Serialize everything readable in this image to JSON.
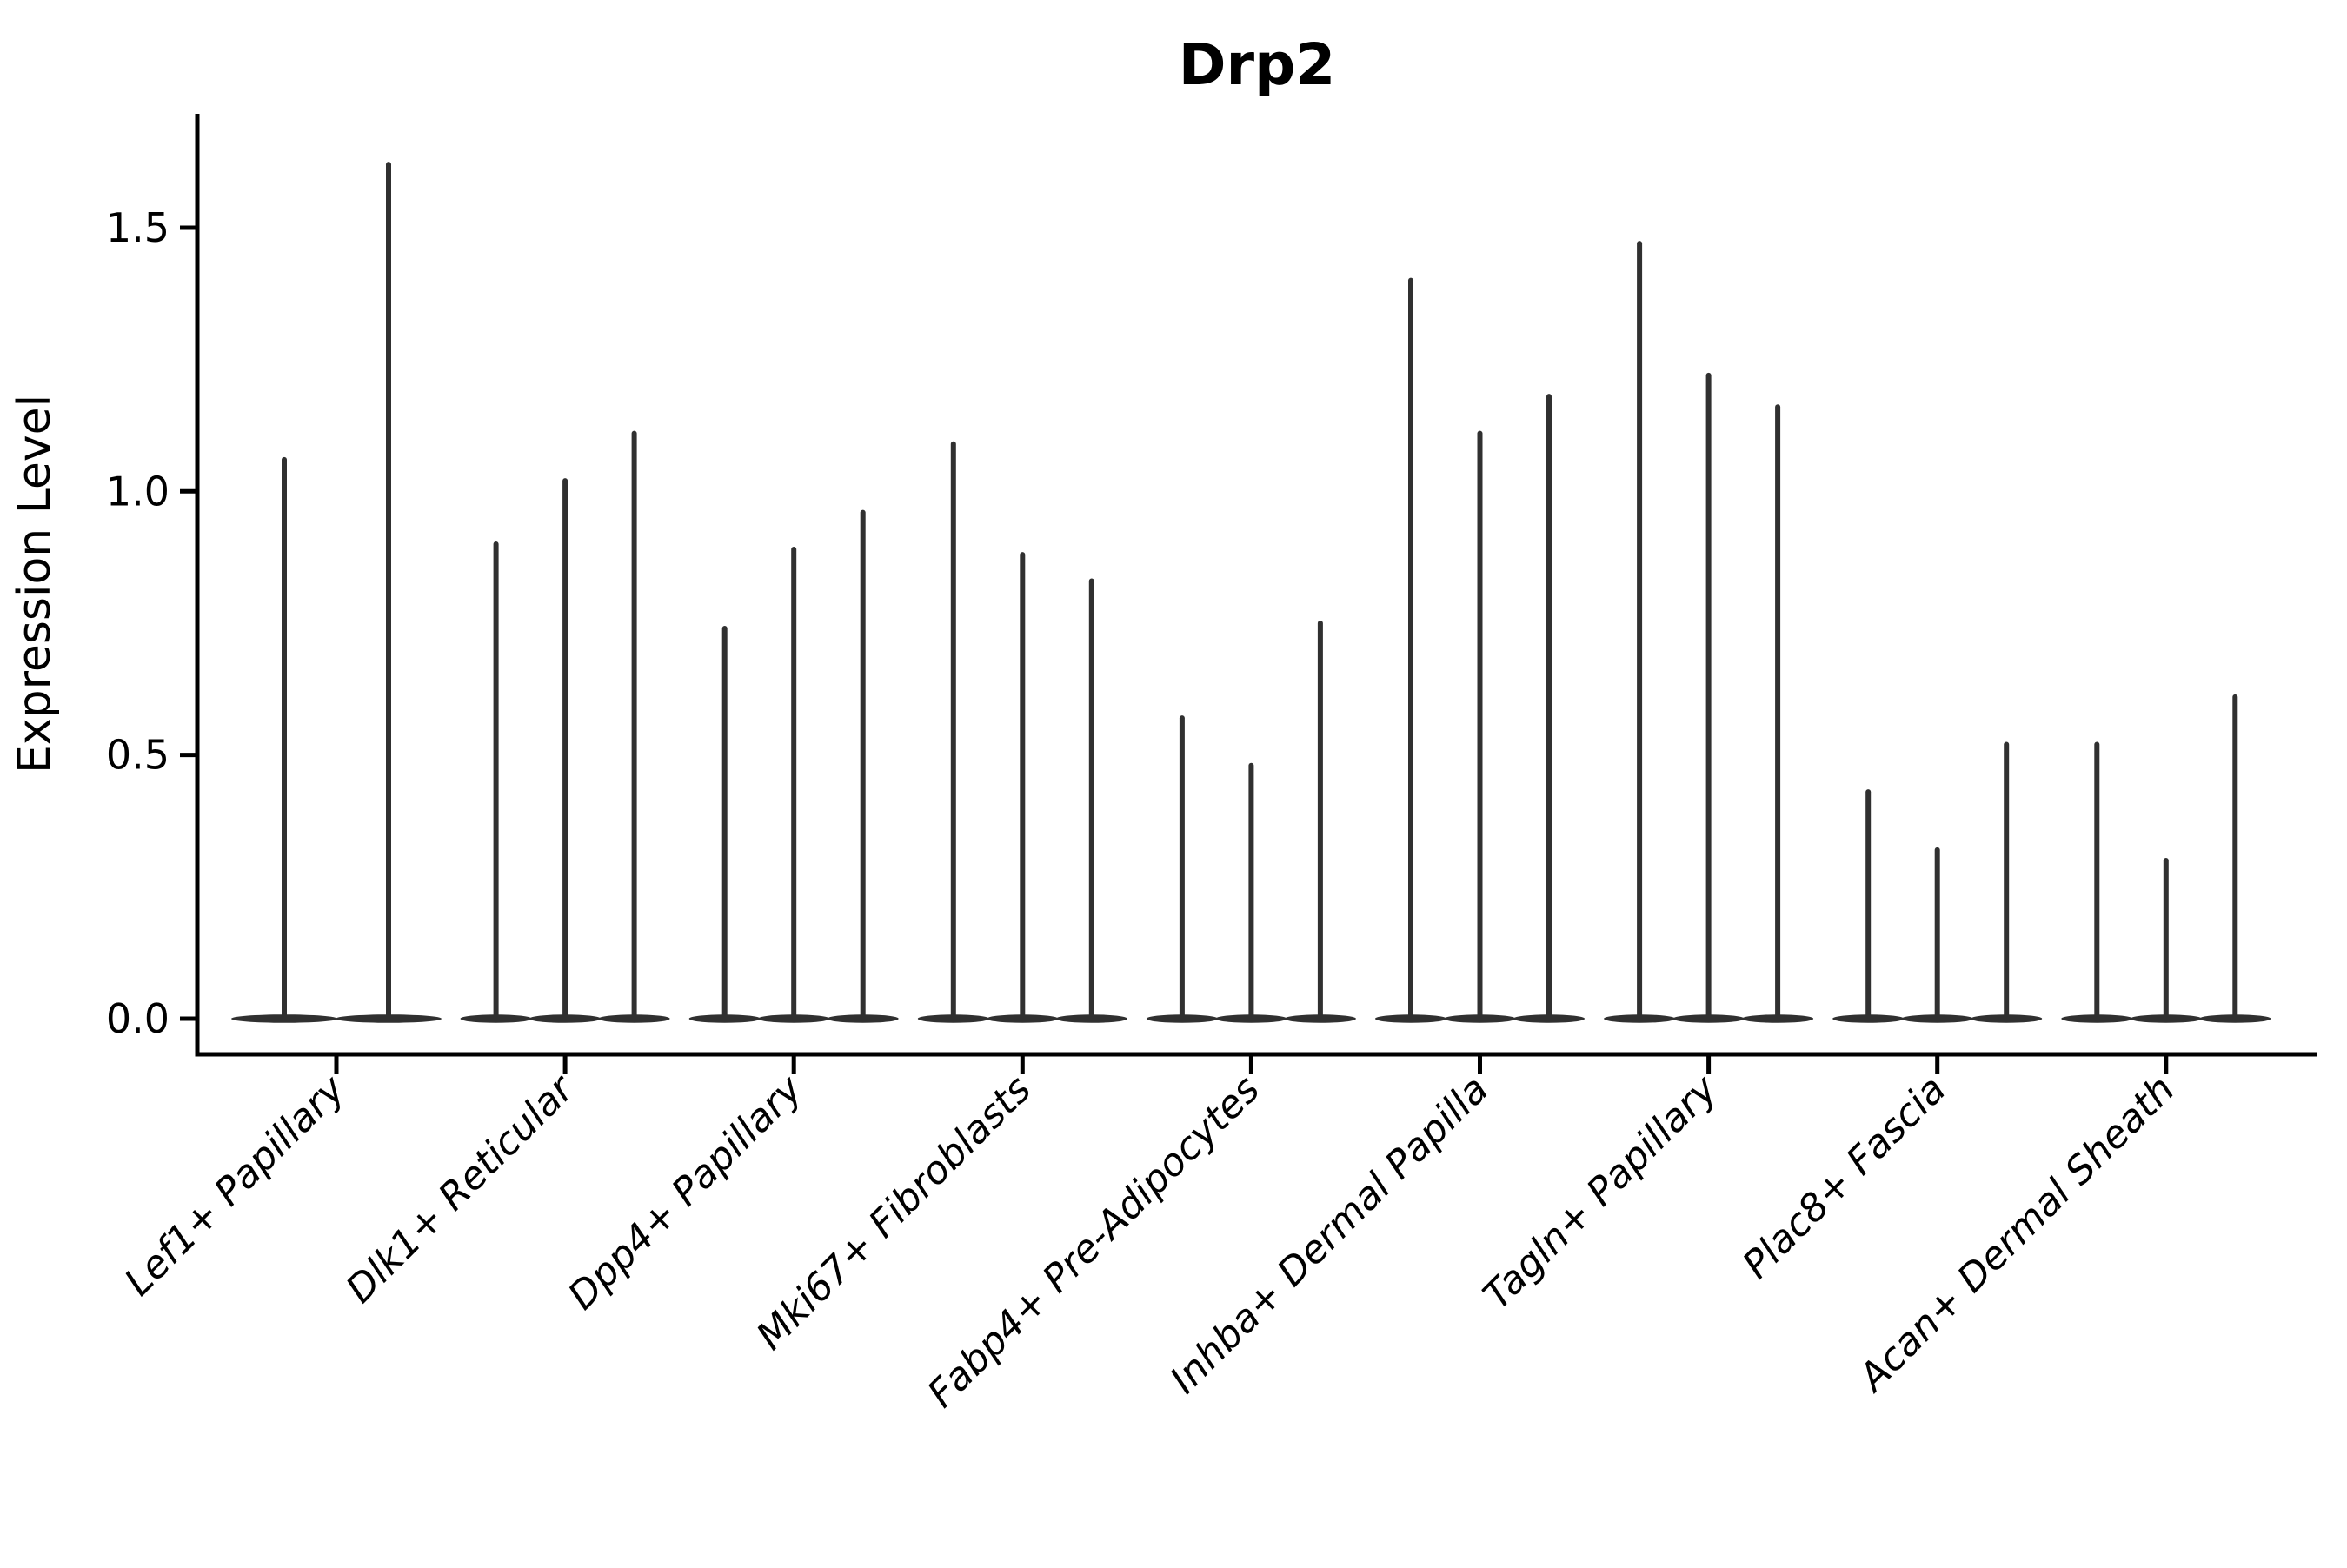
{
  "chart_data": {
    "type": "violin",
    "title": "Drp2",
    "xlabel": "",
    "ylabel": "Expression Level",
    "ytick_labels": [
      "0.0",
      "0.5",
      "1.0",
      "1.5"
    ],
    "ytick_values": [
      0.0,
      0.5,
      1.0,
      1.5
    ],
    "ylim": [
      -0.07,
      1.72
    ],
    "grid": false,
    "legend": "none",
    "violin_color": "#303030",
    "axis_color": "#000000",
    "background_color": "#ffffff",
    "description": "Needle-thin violins: nearly all cells at 0 expression (flat base blob at y=0) with a thin density spike up to the max expression value per violin.",
    "categories": [
      {
        "label": "Lef1+ Papillary",
        "violin_max_values": [
          1.06,
          1.62
        ]
      },
      {
        "label": "Dlk1+ Reticular",
        "violin_max_values": [
          0.9,
          1.02,
          1.11
        ]
      },
      {
        "label": "Dpp4+ Papillary",
        "violin_max_values": [
          0.74,
          0.89,
          0.96
        ]
      },
      {
        "label": "Mki67+ Fibroblasts",
        "violin_max_values": [
          1.09,
          0.88,
          0.83
        ]
      },
      {
        "label": "Fabp4+ Pre-Adipocytes",
        "violin_max_values": [
          0.57,
          0.48,
          0.75
        ]
      },
      {
        "label": "Inhba+ Dermal Papilla",
        "violin_max_values": [
          1.4,
          1.11,
          1.18
        ]
      },
      {
        "label": "Tagln+ Papillary",
        "violin_max_values": [
          1.47,
          1.22,
          1.16
        ]
      },
      {
        "label": "Plac8+ Fascia",
        "violin_max_values": [
          0.43,
          0.32,
          0.52
        ]
      },
      {
        "label": "Acan+ Dermal Sheath",
        "violin_max_values": [
          0.52,
          0.3,
          0.61
        ]
      }
    ]
  }
}
